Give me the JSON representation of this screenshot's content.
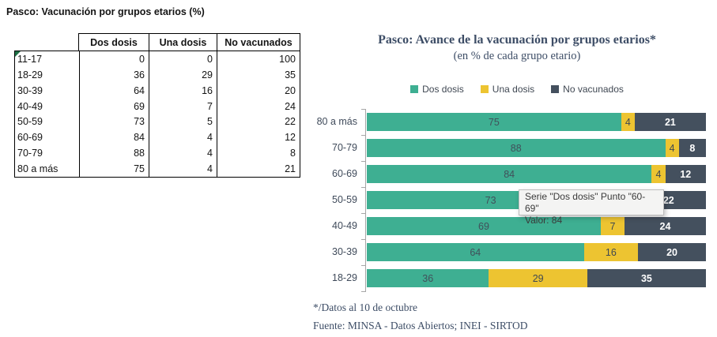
{
  "left_table": {
    "title": "Pasco: Vacunación por grupos etarios (%)",
    "col_headers": [
      "Dos dosis",
      "Una dosis",
      "No vacunados"
    ],
    "rows": [
      {
        "label": "11-17",
        "values": [
          0,
          0,
          100
        ],
        "flag": true
      },
      {
        "label": "18-29",
        "values": [
          36,
          29,
          35
        ]
      },
      {
        "label": "30-39",
        "values": [
          64,
          16,
          20
        ]
      },
      {
        "label": "40-49",
        "values": [
          69,
          7,
          24
        ]
      },
      {
        "label": "50-59",
        "values": [
          73,
          5,
          22
        ]
      },
      {
        "label": "60-69",
        "values": [
          84,
          4,
          12
        ]
      },
      {
        "label": "70-79",
        "values": [
          88,
          4,
          8
        ]
      },
      {
        "label": "80 a más",
        "values": [
          75,
          4,
          21
        ]
      }
    ]
  },
  "chart_data": {
    "type": "bar",
    "orientation": "horizontal",
    "stacked": true,
    "title": "Pasco: Avance de la vacunación por grupos etarios*",
    "subtitle": "(en % de cada grupo etario)",
    "categories": [
      "80 a más",
      "70-79",
      "60-69",
      "50-59",
      "40-49",
      "30-39",
      "18-29"
    ],
    "series": [
      {
        "name": "Dos dosis",
        "color": "#3EAF92",
        "values": [
          75,
          88,
          84,
          73,
          69,
          64,
          36
        ]
      },
      {
        "name": "Una dosis",
        "color": "#EDC431",
        "values": [
          4,
          4,
          4,
          5,
          7,
          16,
          29
        ]
      },
      {
        "name": "No vacunados",
        "color": "#44505E",
        "values": [
          21,
          8,
          12,
          22,
          24,
          20,
          35
        ]
      }
    ],
    "xlim": [
      0,
      100
    ],
    "legend_position": "top",
    "grid": false,
    "data_labels": true
  },
  "tooltip": {
    "line1": "Serie \"Dos dosis\" Punto \"60-69\"",
    "line2": "Valor: 84"
  },
  "footnotes": {
    "note": "*/Datos al 10 de octubre",
    "source": "Fuente: MINSA - Datos Abiertos; INEI - SIRTOD"
  },
  "colors": {
    "dos_dosis": "#3EAF92",
    "una_dosis": "#EDC431",
    "no_vacunados": "#44505E",
    "chart_text": "#3D4D66",
    "flag_triangle": "#1E7145",
    "axis": "#A6A6A6"
  }
}
